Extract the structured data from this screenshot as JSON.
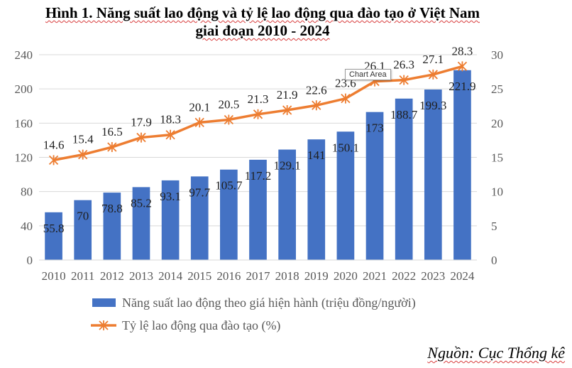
{
  "title_line1": "Hình 1. Năng suất lao động và tỷ lệ lao động qua đào tạo ở Việt Nam",
  "title_line2": "giai đoạn 2010 - 2024",
  "source": "Nguồn: Cục Thống kê",
  "tooltip": "Chart Area",
  "colors": {
    "bar": "#4472C4",
    "line": "#ED7D31",
    "axis_text": "#595959",
    "grid": "#D9D9D9"
  },
  "chart_data": {
    "type": "bar",
    "categories": [
      "2010",
      "2011",
      "2012",
      "2013",
      "2014",
      "2015",
      "2016",
      "2017",
      "2018",
      "2019",
      "2020",
      "2021",
      "2022",
      "2023",
      "2024"
    ],
    "series": [
      {
        "name": "Năng suất lao động theo giá hiện hành (triệu đồng/người)",
        "type": "bar",
        "axis": "left",
        "values": [
          55.8,
          70,
          78.8,
          85.2,
          93.1,
          97.7,
          105.7,
          117.2,
          129.1,
          141,
          150.1,
          173,
          188.7,
          199.3,
          221.9
        ],
        "labels": [
          "55.8",
          "70",
          "78.8",
          "85.2",
          "93.1",
          "97.7",
          "105.7",
          "117.2",
          "129.1",
          "141",
          "150.1",
          "173",
          "188.7",
          "199.3",
          "221.9"
        ]
      },
      {
        "name": "Tỷ lệ lao động qua đào tạo (%)",
        "type": "line",
        "axis": "right",
        "values": [
          14.6,
          15.4,
          16.5,
          17.9,
          18.3,
          20.1,
          20.5,
          21.3,
          21.9,
          22.6,
          23.6,
          26.1,
          26.3,
          27.1,
          28.3
        ],
        "labels": [
          "14.6",
          "15.4",
          "16.5",
          "17.9",
          "18.3",
          "20.1",
          "20.5",
          "21.3",
          "21.9",
          "22.6",
          "23.6",
          "26.1",
          "26.3",
          "27.1",
          "28.3"
        ]
      }
    ],
    "y_left": {
      "min": 0,
      "max": 240,
      "ticks": [
        "0",
        "40",
        "80",
        "120",
        "160",
        "200",
        "240"
      ]
    },
    "y_right": {
      "min": 0,
      "max": 30,
      "ticks": [
        "0",
        "5",
        "10",
        "15",
        "20",
        "25",
        "30"
      ]
    },
    "grid": true,
    "legend_position": "bottom"
  }
}
